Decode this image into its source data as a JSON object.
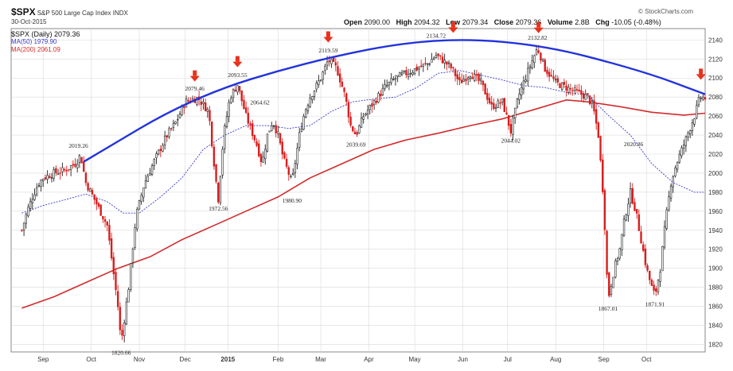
{
  "header": {
    "symbol": "$SPX",
    "name": "S&P 500 Large Cap Index",
    "exchange": "INDX",
    "date": "30-Oct-2015",
    "brand": "© StockCharts.com",
    "open_label": "Open",
    "open": "2090.00",
    "high_label": "High",
    "high": "2094.32",
    "low_label": "Low",
    "low": "2079.34",
    "close_label": "Close",
    "close": "2079.36",
    "volume_label": "Volume",
    "volume": "2.8B",
    "chg_label": "Chg",
    "chg": "-10.05 (-0.48%)"
  },
  "legend": {
    "main": "$SPX (Daily) 2079.36",
    "ma50": "MA(50) 1979.90",
    "ma200": "MA(200) 2061.09"
  },
  "colors": {
    "candle_up": "#222222",
    "candle_down": "#d81e1e",
    "ma50": "#3a3acc",
    "ma200": "#d22b2b",
    "trend_arc": "#2233dd",
    "arrow": "#e8321c",
    "grid": "#d9d9d9"
  },
  "chart_data": {
    "type": "candlestick",
    "title": "$SPX S&P 500 Large Cap Index INDX",
    "y_axis_position": "right",
    "ylim": [
      1812,
      2152
    ],
    "y_ticks": [
      1820,
      1840,
      1860,
      1880,
      1900,
      1920,
      1940,
      1960,
      1980,
      2000,
      2020,
      2040,
      2060,
      2080,
      2100,
      2120,
      2140
    ],
    "x_ticks": [
      {
        "label": "Sep",
        "week": 2
      },
      {
        "label": "Oct",
        "week": 6.5
      },
      {
        "label": "Nov",
        "week": 11
      },
      {
        "label": "Dec",
        "week": 15.3
      },
      {
        "label": "2015",
        "week": 19.3
      },
      {
        "label": "Feb",
        "week": 24
      },
      {
        "label": "Mar",
        "week": 28
      },
      {
        "label": "Apr",
        "week": 32.5
      },
      {
        "label": "May",
        "week": 36.8
      },
      {
        "label": "Jun",
        "week": 41.3
      },
      {
        "label": "Jul",
        "week": 45.5
      },
      {
        "label": "Aug",
        "week": 50
      },
      {
        "label": "Sep",
        "week": 54.5
      },
      {
        "label": "Oct",
        "week": 58.5
      }
    ],
    "x_range_weeks": [
      -1,
      64
    ],
    "price_path": [
      [
        0,
        1940
      ],
      [
        0.5,
        1960
      ],
      [
        1,
        1975
      ],
      [
        1.5,
        1988
      ],
      [
        2,
        1995
      ],
      [
        3,
        2000
      ],
      [
        4,
        2003
      ],
      [
        5,
        2010
      ],
      [
        5.5,
        2019
      ],
      [
        6,
        1990
      ],
      [
        7,
        1968
      ],
      [
        8,
        1945
      ],
      [
        9,
        1860
      ],
      [
        9.3,
        1821
      ],
      [
        10,
        1880
      ],
      [
        10.7,
        1955
      ],
      [
        11.5,
        1990
      ],
      [
        12.5,
        2015
      ],
      [
        13.5,
        2038
      ],
      [
        14.5,
        2055
      ],
      [
        15.3,
        2075
      ],
      [
        16.5,
        2079
      ],
      [
        17.5,
        2065
      ],
      [
        18.1,
        2000
      ],
      [
        18.4,
        1973
      ],
      [
        18.9,
        2040
      ],
      [
        19.5,
        2080
      ],
      [
        20.2,
        2093
      ],
      [
        21,
        2060
      ],
      [
        22,
        2030
      ],
      [
        22.5,
        2010
      ],
      [
        23,
        2040
      ],
      [
        23.5,
        2055
      ],
      [
        24,
        2040
      ],
      [
        24.5,
        2015
      ],
      [
        25.3,
        1990
      ],
      [
        26,
        2040
      ],
      [
        26.5,
        2065
      ],
      [
        27,
        2080
      ],
      [
        28,
        2100
      ],
      [
        28.7,
        2119
      ],
      [
        29.5,
        2110
      ],
      [
        30.3,
        2080
      ],
      [
        30.8,
        2050
      ],
      [
        31.3,
        2040
      ],
      [
        32,
        2060
      ],
      [
        33,
        2075
      ],
      [
        34,
        2090
      ],
      [
        35,
        2100
      ],
      [
        36,
        2105
      ],
      [
        37,
        2110
      ],
      [
        38,
        2115
      ],
      [
        38.8,
        2124
      ],
      [
        39.5,
        2118
      ],
      [
        40.3,
        2110
      ],
      [
        41,
        2095
      ],
      [
        42,
        2105
      ],
      [
        43,
        2095
      ],
      [
        44,
        2070
      ],
      [
        45,
        2075
      ],
      [
        45.8,
        2044
      ],
      [
        46.5,
        2080
      ],
      [
        47,
        2095
      ],
      [
        47.5,
        2110
      ],
      [
        48.3,
        2132
      ],
      [
        49,
        2110
      ],
      [
        50,
        2095
      ],
      [
        51,
        2090
      ],
      [
        52,
        2085
      ],
      [
        53,
        2080
      ],
      [
        53.5,
        2070
      ],
      [
        54,
        2040
      ],
      [
        54.5,
        1970
      ],
      [
        54.9,
        1867
      ],
      [
        55.5,
        1900
      ],
      [
        56,
        1920
      ],
      [
        56.5,
        1955
      ],
      [
        57,
        1980
      ],
      [
        57.5,
        1960
      ],
      [
        58,
        1930
      ],
      [
        58.5,
        1900
      ],
      [
        59,
        1880
      ],
      [
        59.3,
        1871
      ],
      [
        59.8,
        1900
      ],
      [
        60.3,
        1950
      ],
      [
        60.8,
        1990
      ],
      [
        61.3,
        2010
      ],
      [
        62,
        2030
      ],
      [
        62.5,
        2045
      ],
      [
        63,
        2060
      ],
      [
        63.5,
        2080
      ],
      [
        64,
        2079
      ]
    ],
    "ma50": [
      [
        0,
        1958
      ],
      [
        2,
        1966
      ],
      [
        4,
        1972
      ],
      [
        6,
        1978
      ],
      [
        8,
        1970
      ],
      [
        9.5,
        1958
      ],
      [
        11,
        1958
      ],
      [
        13,
        1975
      ],
      [
        15,
        1995
      ],
      [
        17,
        2025
      ],
      [
        19,
        2040
      ],
      [
        21,
        2050
      ],
      [
        23,
        2050
      ],
      [
        25,
        2047
      ],
      [
        27,
        2050
      ],
      [
        29,
        2065
      ],
      [
        31,
        2075
      ],
      [
        33,
        2078
      ],
      [
        35,
        2080
      ],
      [
        37,
        2090
      ],
      [
        39,
        2105
      ],
      [
        41,
        2108
      ],
      [
        43,
        2103
      ],
      [
        45,
        2098
      ],
      [
        47,
        2092
      ],
      [
        49,
        2090
      ],
      [
        51,
        2085
      ],
      [
        53,
        2082
      ],
      [
        55,
        2060
      ],
      [
        57,
        2040
      ],
      [
        59,
        2010
      ],
      [
        61,
        1990
      ],
      [
        63,
        1980
      ],
      [
        64,
        1980
      ]
    ],
    "ma200": [
      [
        0,
        1858
      ],
      [
        3,
        1870
      ],
      [
        6,
        1885
      ],
      [
        9,
        1900
      ],
      [
        12,
        1912
      ],
      [
        15,
        1930
      ],
      [
        18,
        1945
      ],
      [
        21,
        1960
      ],
      [
        24,
        1975
      ],
      [
        27,
        1995
      ],
      [
        30,
        2010
      ],
      [
        33,
        2025
      ],
      [
        36,
        2035
      ],
      [
        39,
        2042
      ],
      [
        42,
        2050
      ],
      [
        45,
        2057
      ],
      [
        48,
        2067
      ],
      [
        51,
        2077
      ],
      [
        53,
        2075
      ],
      [
        56,
        2070
      ],
      [
        59,
        2064
      ],
      [
        62,
        2061
      ],
      [
        64,
        2063
      ]
    ],
    "trend_arc": [
      [
        5.8,
        2012
      ],
      [
        16,
        2080
      ],
      [
        27,
        2118
      ],
      [
        38,
        2142
      ],
      [
        48,
        2137
      ],
      [
        58,
        2108
      ],
      [
        64,
        2083
      ]
    ],
    "arrows": [
      16.2,
      20.2,
      28.7,
      40.4,
      48.4,
      63.6
    ],
    "annotations": [
      {
        "text": "2019.26",
        "week": 5.3,
        "price": 2019.26,
        "pos": "above"
      },
      {
        "text": "1820.66",
        "week": 9.3,
        "price": 1820.66,
        "pos": "below"
      },
      {
        "text": "2079.46",
        "week": 16.2,
        "price": 2079.46,
        "pos": "above"
      },
      {
        "text": "2093.55",
        "week": 20.2,
        "price": 2093.55,
        "pos": "above"
      },
      {
        "text": "1972.56",
        "week": 18.4,
        "price": 1972.56,
        "pos": "below"
      },
      {
        "text": "2064.62",
        "week": 22.3,
        "price": 2064.62,
        "pos": "above"
      },
      {
        "text": "1980.90",
        "week": 25.3,
        "price": 1980.9,
        "pos": "below"
      },
      {
        "text": "2119.59",
        "week": 28.7,
        "price": 2119.59,
        "pos": "above"
      },
      {
        "text": "2039.69",
        "week": 31.3,
        "price": 2039.69,
        "pos": "below"
      },
      {
        "text": "2134.72",
        "week": 38.8,
        "price": 2134.72,
        "pos": "above"
      },
      {
        "text": "2132.82",
        "week": 48.3,
        "price": 2132.82,
        "pos": "above"
      },
      {
        "text": "2044.02",
        "week": 45.8,
        "price": 2044.02,
        "pos": "below"
      },
      {
        "text": "1867.01",
        "week": 54.9,
        "price": 1867.01,
        "pos": "below"
      },
      {
        "text": "2020.86",
        "week": 57.3,
        "price": 2020.86,
        "pos": "above"
      },
      {
        "text": "1871.91",
        "week": 59.3,
        "price": 1871.91,
        "pos": "below"
      }
    ]
  }
}
